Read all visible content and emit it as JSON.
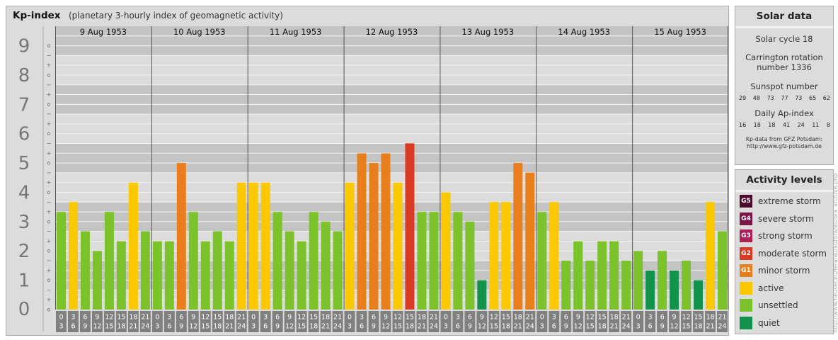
{
  "title": {
    "main": "Kp-index",
    "sub": "(planetary 3-hourly index of geomagnetic activity)"
  },
  "chart_data": {
    "type": "bar",
    "ylim": [
      0,
      9
    ],
    "y_ticks": [
      "0",
      "1",
      "2",
      "3",
      "4",
      "5",
      "6",
      "7",
      "8",
      "9"
    ],
    "minor_marks": [
      "+",
      "o",
      "−"
    ],
    "days": [
      "9 Aug 1953",
      "10 Aug 1953",
      "11 Aug 1953",
      "12 Aug 1953",
      "13 Aug 1953",
      "14 Aug 1953",
      "15 Aug 1953"
    ],
    "hour_labels": [
      [
        "0",
        "3"
      ],
      [
        "3",
        "6"
      ],
      [
        "6",
        "9"
      ],
      [
        "9",
        "12"
      ],
      [
        "12",
        "15"
      ],
      [
        "15",
        "18"
      ],
      [
        "18",
        "21"
      ],
      [
        "21",
        "24"
      ]
    ],
    "values": [
      [
        3.33,
        3.67,
        2.67,
        2.0,
        3.33,
        2.33,
        4.33,
        2.67
      ],
      [
        2.33,
        2.33,
        5.0,
        3.33,
        2.33,
        2.67,
        2.33,
        4.33
      ],
      [
        4.33,
        4.33,
        3.33,
        2.67,
        2.33,
        3.33,
        3.0,
        2.67
      ],
      [
        4.33,
        5.33,
        5.0,
        5.33,
        4.33,
        5.67,
        3.33,
        3.33
      ],
      [
        4.0,
        3.33,
        3.0,
        1.0,
        3.67,
        3.67,
        5.0,
        4.67
      ],
      [
        3.33,
        3.67,
        1.67,
        2.33,
        1.67,
        2.33,
        2.33,
        1.67
      ],
      [
        2.0,
        1.33,
        2.0,
        1.33,
        1.67,
        1.0,
        3.67,
        2.67
      ]
    ],
    "colors": {
      "quiet": "#12924a",
      "unsettled": "#7cc22a",
      "active": "#fcc800",
      "g1": "#e87f1c",
      "g2": "#d93a24",
      "g3": "#b01e5a",
      "g4": "#7d1548",
      "g5": "#4d0c2a"
    }
  },
  "solar": {
    "header": "Solar data",
    "cycle": "Solar cycle 18",
    "carrington_l1": "Carrington rotation",
    "carrington_l2": "number 1336",
    "sunspot_label": "Sunspot number",
    "sunspots": [
      "29",
      "48",
      "73",
      "77",
      "73",
      "65",
      "62"
    ],
    "ap_label": "Daily Ap-index",
    "ap": [
      "16",
      "18",
      "18",
      "41",
      "24",
      "11",
      "8"
    ],
    "note_l1": "Kp-data from GFZ Potsdam:",
    "note_l2": "http://www.gfz-potsdam.de"
  },
  "activity": {
    "header": "Activity levels",
    "levels": [
      {
        "code": "G5",
        "label": "extreme storm",
        "color": "#4d0c2a"
      },
      {
        "code": "G4",
        "label": "severe storm",
        "color": "#7d1548"
      },
      {
        "code": "G3",
        "label": "strong storm",
        "color": "#b01e5a"
      },
      {
        "code": "G2",
        "label": "moderate storm",
        "color": "#d93a24"
      },
      {
        "code": "G1",
        "label": "minor storm",
        "color": "#e87f1c"
      },
      {
        "code": "",
        "label": "active",
        "color": "#fcc800"
      },
      {
        "code": "",
        "label": "unsettled",
        "color": "#7cc22a"
      },
      {
        "code": "",
        "label": "quiet",
        "color": "#12924a"
      }
    ]
  },
  "credit": "http://www.fleuser.eu/fera/au/aurora/aurora_archive.php"
}
